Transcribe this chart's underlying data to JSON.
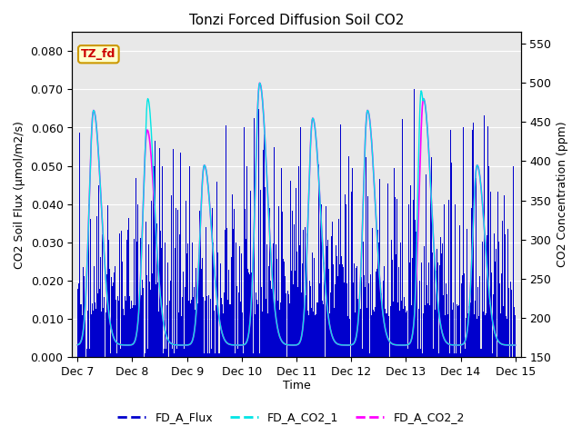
{
  "title": "Tonzi Forced Diffusion Soil CO2",
  "xlabel": "Time",
  "ylabel_left": "CO2 Soil Flux (μmol/m2/s)",
  "ylabel_right": "CO2 Concentration (ppm)",
  "ylim_left": [
    0.0,
    0.085
  ],
  "ylim_right": [
    150,
    565
  ],
  "yticks_left": [
    0.0,
    0.01,
    0.02,
    0.03,
    0.04,
    0.05,
    0.06,
    0.07,
    0.08
  ],
  "yticks_right": [
    150,
    200,
    250,
    300,
    350,
    400,
    450,
    500,
    550
  ],
  "xtick_labels": [
    "Dec 7",
    "Dec 8",
    "Dec 9",
    "Dec 10",
    "Dec 11",
    "Dec 12",
    "Dec 13",
    "Dec 14",
    "Dec 15"
  ],
  "legend_labels": [
    "FD_A_Flux",
    "FD_A_CO2_1",
    "FD_A_CO2_2"
  ],
  "flux_color": "#0000cd",
  "co2_1_color": "#00e5e5",
  "co2_2_color": "#ff00ff",
  "tag_text": "TZ_fd",
  "tag_bg": "#ffffcc",
  "tag_border": "#cc9900",
  "tag_text_color": "#cc0000",
  "bg_color": "#e8e8e8",
  "grid_color": "#ffffff"
}
